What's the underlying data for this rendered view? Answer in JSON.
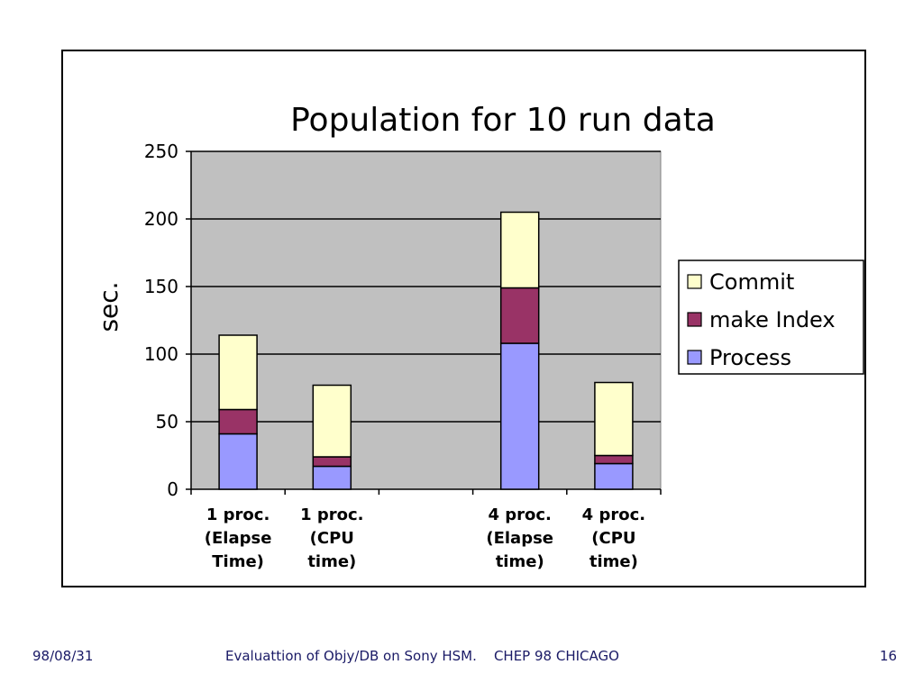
{
  "chart_data": {
    "type": "bar",
    "stacked": true,
    "title": "Population for 10 run data",
    "ylabel": "sec.",
    "xlabel": "",
    "ylim": [
      0,
      250
    ],
    "yticks": [
      0,
      50,
      100,
      150,
      200,
      250
    ],
    "grid": true,
    "legend_position": "right",
    "categories": [
      [
        "1 proc.",
        "(Elapse",
        "Time)"
      ],
      [
        "1 proc.",
        "(CPU",
        "time)"
      ],
      [],
      [
        "4 proc.",
        "(Elapse",
        "time)"
      ],
      [
        "4 proc.",
        "(CPU",
        "time)"
      ]
    ],
    "series": [
      {
        "name": "Process",
        "color": "#9999ff",
        "values": [
          41,
          17,
          null,
          108,
          19
        ]
      },
      {
        "name": "make Index",
        "color": "#993366",
        "values": [
          18,
          7,
          null,
          41,
          6
        ]
      },
      {
        "name": "Commit",
        "color": "#ffffcc",
        "values": [
          55,
          53,
          null,
          56,
          54
        ]
      }
    ],
    "legend_order": [
      "Commit",
      "make Index",
      "Process"
    ],
    "plot_background": "#c0c0c0"
  },
  "footer": {
    "date": "98/08/31",
    "center": "Evaluattion of Objy/DB on Sony HSM.    CHEP 98 CHICAGO",
    "page": "16"
  }
}
